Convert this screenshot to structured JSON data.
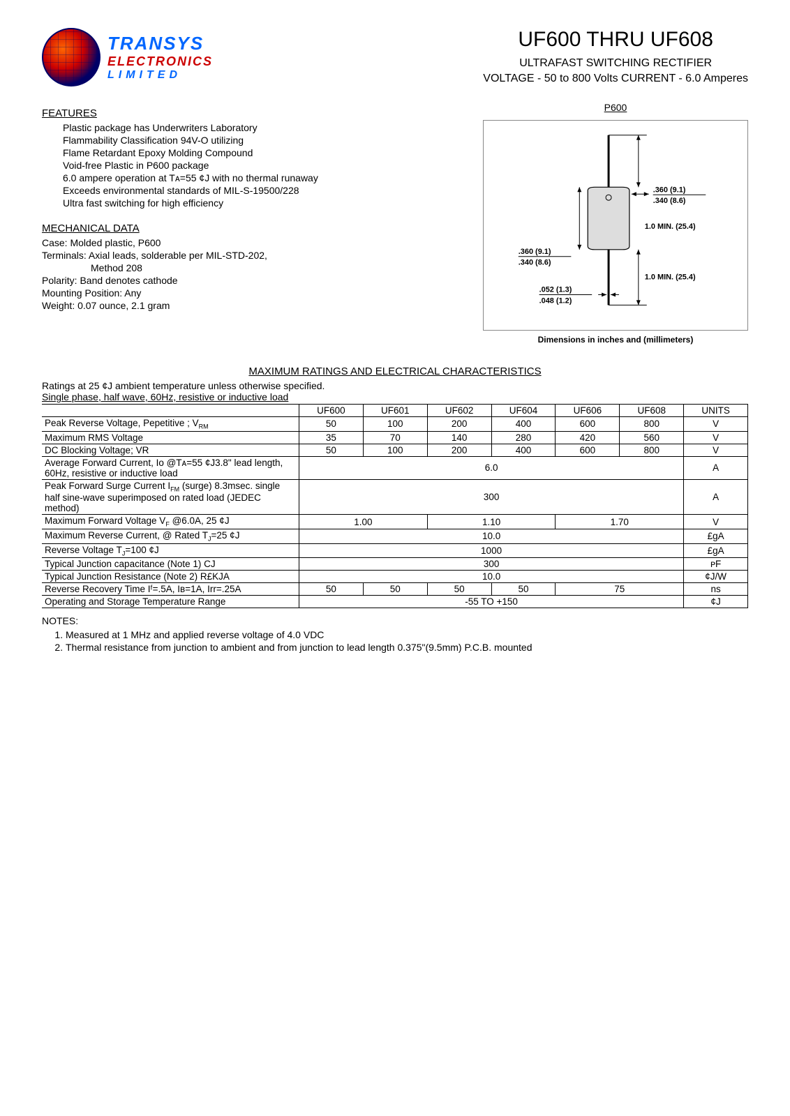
{
  "logo": {
    "t1": "TRANSYS",
    "t2": "ELECTRONICS",
    "t3": "LIMITED"
  },
  "title": {
    "main": "UF600 THRU UF608",
    "sub1": "ULTRAFAST SWITCHING RECTIFIER",
    "sub2": "VOLTAGE - 50 to 800 Volts   CURRENT - 6.0 Amperes"
  },
  "features": {
    "head": "FEATURES",
    "items": [
      "Plastic package has Underwriters Laboratory",
      " Flammability Classification 94V-O utilizing",
      " Flame Retardant Epoxy Molding Compound",
      "Void-free Plastic in P600 package",
      "6.0 ampere operation at Tᴀ=55 ¢J with no thermal runaway",
      "Exceeds environmental standards of MIL-S-19500/228",
      "Ultra fast switching for high efficiency"
    ]
  },
  "mech": {
    "head": "MECHANICAL DATA",
    "items": [
      "Case: Molded plastic, P600",
      "Terminals: Axial leads, solderable per MIL-STD-202,",
      "Method 208",
      "Polarity: Band denotes cathode",
      "Mounting Position: Any",
      "Weight: 0.07 ounce, 2.1 gram"
    ]
  },
  "package": {
    "name": "P600",
    "caption": "Dimensions in inches and (millimeters)",
    "dims": {
      "body_d_top": ".360  (9.1)",
      "body_d_bot": ".340  (8.6)",
      "lead_len": "1.0 MIN. (25.4)",
      "body_h_top": ".360  (9.1)",
      "body_h_bot": ".340  (8.6)",
      "lead_d_top": ".052  (1.3)",
      "lead_d_bot": ".048  (1.2)"
    }
  },
  "ratings": {
    "head": "MAXIMUM RATINGS AND ELECTRICAL CHARACTERISTICS",
    "note1": "Ratings at 25 ¢J  ambient temperature unless otherwise specified.",
    "note2": "Single phase, half wave, 60Hz, resistive or inductive load",
    "columns": [
      "UF600",
      "UF601",
      "UF602",
      "UF604",
      "UF606",
      "UF608",
      "UNITS"
    ],
    "rows": [
      {
        "param": "Peak Reverse Voltage, Pepetitive ; V",
        "sub": "RM",
        "vals": [
          "50",
          "100",
          "200",
          "400",
          "600",
          "800"
        ],
        "unit": "V"
      },
      {
        "param": "Maximum RMS Voltage",
        "vals": [
          "35",
          "70",
          "140",
          "280",
          "420",
          "560"
        ],
        "unit": "V"
      },
      {
        "param": "DC Blocking Voltage; VR",
        "vals": [
          "50",
          "100",
          "200",
          "400",
          "600",
          "800"
        ],
        "unit": "V"
      },
      {
        "param": "Average Forward Current, Io @Tᴀ=55 ¢J3.8\" lead length, 60Hz, resistive or inductive load",
        "span": 6,
        "val": "6.0",
        "unit": "A"
      },
      {
        "param": "Peak Forward Surge Current I",
        "sub": "FM",
        "paramTail": " (surge) 8.3msec. single half sine-wave superimposed on rated load (JEDEC method)",
        "span": 6,
        "val": "300",
        "unit": "A"
      },
      {
        "param": "Maximum Forward Voltage V",
        "sub": "F",
        "paramTail": " @6.0A, 25 ¢J",
        "groups": [
          {
            "span": 2,
            "val": "1.00"
          },
          {
            "span": 2,
            "val": "1.10"
          },
          {
            "span": 2,
            "val": "1.70"
          }
        ],
        "unit": "V"
      },
      {
        "param": "Maximum Reverse Current, @ Rated T",
        "sub": "J",
        "paramTail": "=25 ¢J",
        "span": 6,
        "val": "10.0",
        "unit": "£gA"
      },
      {
        "param": "Reverse Voltage T",
        "sub": "J",
        "paramTail": "=100 ¢J",
        "span": 6,
        "val": "1000",
        "unit": "£gA"
      },
      {
        "param": "Typical Junction capacitance (Note 1) CJ",
        "span": 6,
        "val": "300",
        "unit": "ᴘF"
      },
      {
        "param": "Typical Junction Resistance (Note 2) R£KJA",
        "span": 6,
        "val": "10.0",
        "unit": "¢J/W"
      },
      {
        "param": "Reverse Recovery Time",
        "paramTail": " Iᶠ=.5A, Iʙ=1A, Irr=.25A",
        "vals": [
          "50",
          "50",
          "50",
          "50"
        ],
        "tailGroup": {
          "span": 2,
          "val": "75"
        },
        "unit": "ns"
      },
      {
        "param": "Operating and Storage Temperature Range",
        "span": 6,
        "val": "-55 TO +150",
        "unit": "¢J"
      }
    ]
  },
  "notes": {
    "head": "NOTES:",
    "items": [
      "Measured at 1 MHz and applied reverse voltage of 4.0 VDC",
      "Thermal resistance from junction to ambient and from junction to lead length 0.375\"(9.5mm) P.C.B. mounted"
    ]
  }
}
